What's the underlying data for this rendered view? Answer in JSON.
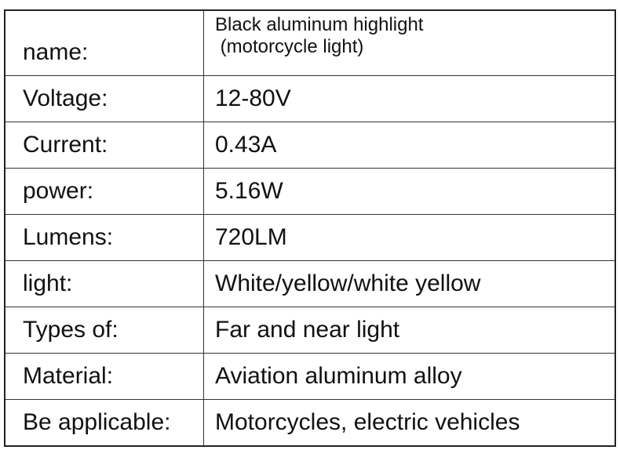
{
  "table": {
    "rows": [
      {
        "label": "name:",
        "value": [
          "Black aluminum highlight",
          " (motorcycle light)"
        ]
      },
      {
        "label": "Voltage:",
        "value": [
          "12-80V"
        ]
      },
      {
        "label": "Current:",
        "value": [
          "0.43A"
        ]
      },
      {
        "label": "power:",
        "value": [
          "5.16W"
        ]
      },
      {
        "label": "Lumens:",
        "value": [
          "720LM"
        ]
      },
      {
        "label": "light:",
        "value": [
          "White/yellow/white yellow"
        ]
      },
      {
        "label": "Types of:",
        "value": [
          "Far and near light"
        ]
      },
      {
        "label": "Material:",
        "value": [
          "Aviation aluminum alloy"
        ]
      },
      {
        "label": "Be applicable:",
        "value": [
          "Motorcycles, electric vehicles"
        ]
      }
    ]
  }
}
